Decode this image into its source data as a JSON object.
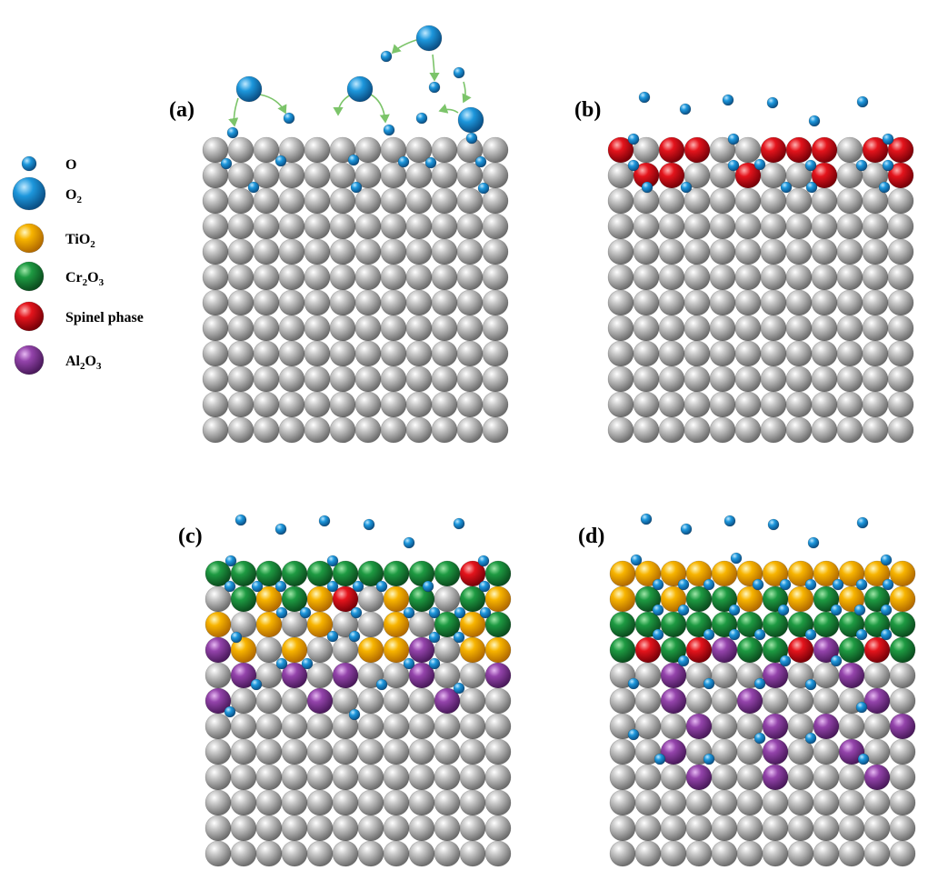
{
  "legend": {
    "items": [
      {
        "key": "O",
        "label_main": "O",
        "label_sub": "",
        "label_tail": "",
        "ball": "o"
      },
      {
        "key": "O2",
        "label_main": "O",
        "label_sub": "2",
        "label_tail": "",
        "ball": "o2"
      },
      {
        "key": "TiO2",
        "label_main": "TiO",
        "label_sub": "2",
        "label_tail": "",
        "ball": "y"
      },
      {
        "key": "Cr2O3",
        "label_main": "Cr",
        "label_sub": "2",
        "label_tail": "O",
        "label_sub2": "3",
        "ball": "g"
      },
      {
        "key": "spinel",
        "label_main": "Spinel phase",
        "label_sub": "",
        "label_tail": "",
        "ball": "r"
      },
      {
        "key": "Al2O3",
        "label_main": "Al",
        "label_sub": "2",
        "label_tail": "O",
        "label_sub2": "3",
        "ball": "p"
      }
    ]
  },
  "colors": {
    "grey": "#b5b5b5",
    "yellow": "#f2a900",
    "green": "#1b8a3c",
    "red": "#d8121b",
    "purple": "#8a3ea0",
    "oxygen": "#1e90d6"
  },
  "panels": [
    {
      "id": "a",
      "label": "(a)",
      "rows": [
        "GGGGGGGGGGGG",
        "GGGGGGGGGGGG",
        "GGGGGGGGGGGG",
        "GGGGGGGGGGGG",
        "GGGGGGGGGGGG",
        "GGGGGGGGGGGG",
        "GGGGGGGGGGGG",
        "GGGGGGGGGGGG",
        "GGGGGGGGGGGG",
        "GGGGGGGGGGGG",
        "GGGGGGGGGGGG",
        "GGGGGGGGGGGG"
      ]
    },
    {
      "id": "b",
      "label": "(b)",
      "rows": [
        "RGRRGGRRRGRR",
        "GRRGGRGGRGGR",
        "GGGGGGGGGGGG",
        "GGGGGGGGGGGG",
        "GGGGGGGGGGGG",
        "GGGGGGGGGGGG",
        "GGGGGGGGGGGG",
        "GGGGGGGGGGGG",
        "GGGGGGGGGGGG",
        "GGGGGGGGGGGG",
        "GGGGGGGGGGGG",
        "GGGGGGGGGGGG"
      ]
    },
    {
      "id": "c",
      "label": "(c)",
      "rows": [
        "CCCCCCCCCCRC",
        "GCYCYRGYCGCY",
        "YGYGYGGYGCYC",
        "PYGYGGYYPGYY",
        "GPGPGPGGPGGP",
        "PGGGPGGGGPGG",
        "GGGGGGGGGGGG",
        "GGGGGGGGGGGG",
        "GGGGGGGGGGGG",
        "GGGGGGGGGGGG",
        "GGGGGGGGGGGG",
        "GGGGGGGGGGGG"
      ]
    },
    {
      "id": "d",
      "label": "(d)",
      "rows": [
        "YYYYYYYYYYYY",
        "YCYCCYCYCYCY",
        "CCCCCCCCCCCC",
        "CRCRPCCRPCRC",
        "GGPGGGPGGPGG",
        "GGPGGPGGGGPG",
        "GGGPGGPGPGGP",
        "GGPGGGPGGPGG",
        "GGGPGGPGGGPG",
        "GGGGGGGGGGGG",
        "GGGGGGGGGGGG",
        "GGGGGGGGGGGG"
      ]
    }
  ]
}
